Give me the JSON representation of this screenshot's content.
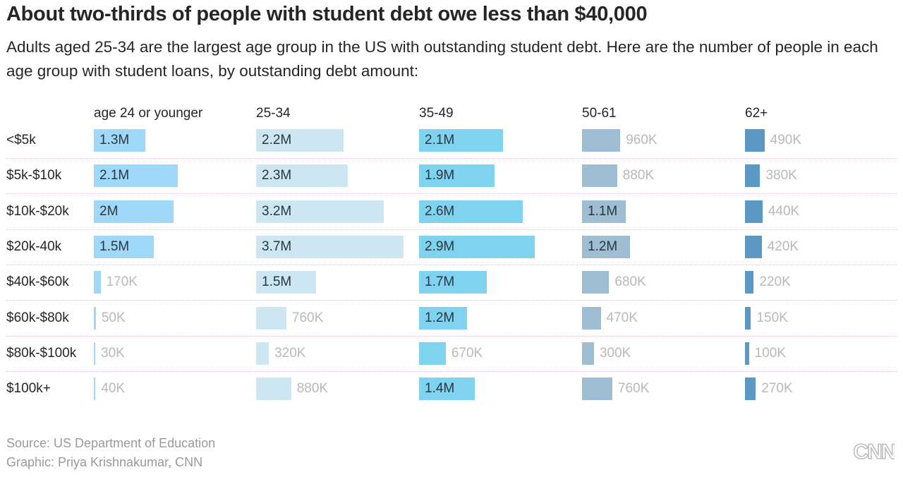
{
  "chart_data": {
    "type": "bar",
    "title": "About two-thirds of people with student debt owe less than $40,000",
    "subtitle": "Adults aged 25-34 are the largest age group in the US with outstanding student debt. Here are the number of people in each age group with student loans, by outstanding debt amount:",
    "categories": [
      "<$5k",
      "$5k-$10k",
      "$10k-$20k",
      "$20k-40k",
      "$40k-$60k",
      "$60k-$80k",
      "$80k-$100k",
      "$100k+"
    ],
    "series": [
      {
        "name": "age 24 or younger",
        "color": "#9fd8f8",
        "values": [
          1300000,
          2100000,
          2000000,
          1500000,
          170000,
          50000,
          30000,
          40000
        ],
        "labels": [
          "1.3M",
          "2.1M",
          "2M",
          "1.5M",
          "170K",
          "50K",
          "30K",
          "40K"
        ]
      },
      {
        "name": "25-34",
        "color": "#cde7f2",
        "values": [
          2200000,
          2300000,
          3200000,
          3700000,
          1500000,
          760000,
          320000,
          880000
        ],
        "labels": [
          "2.2M",
          "2.3M",
          "3.2M",
          "3.7M",
          "1.5M",
          "760K",
          "320K",
          "880K"
        ]
      },
      {
        "name": "35-49",
        "color": "#80d3ef",
        "values": [
          2100000,
          1900000,
          2600000,
          2900000,
          1700000,
          1200000,
          670000,
          1400000
        ],
        "labels": [
          "2.1M",
          "1.9M",
          "2.6M",
          "2.9M",
          "1.7M",
          "1.2M",
          "670K",
          "1.4M"
        ]
      },
      {
        "name": "50-61",
        "color": "#9fbed3",
        "values": [
          960000,
          880000,
          1100000,
          1200000,
          680000,
          470000,
          300000,
          760000
        ],
        "labels": [
          "960K",
          "880K",
          "1.1M",
          "1.2M",
          "680K",
          "470K",
          "300K",
          "760K"
        ]
      },
      {
        "name": "62+",
        "color": "#5b98c4",
        "values": [
          490000,
          380000,
          440000,
          420000,
          220000,
          150000,
          100000,
          270000
        ],
        "labels": [
          "490K",
          "380K",
          "440K",
          "420K",
          "220K",
          "150K",
          "100K",
          "270K"
        ]
      }
    ],
    "legend": "column headers",
    "grid": false
  },
  "footer": {
    "source": "Source: US Department of Education",
    "graphic": "Graphic: Priya Krishnakumar, CNN",
    "logo": "CNN"
  }
}
